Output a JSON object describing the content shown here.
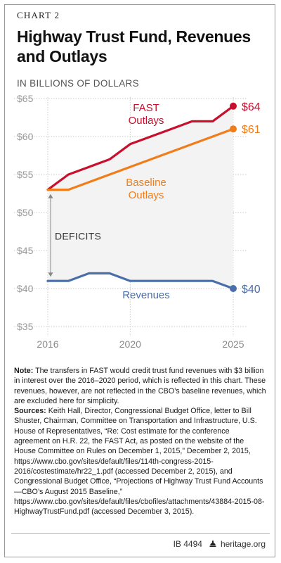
{
  "header": {
    "chart_label": "CHART 2",
    "title": "Highway Trust Fund, Revenues and Outlays",
    "units": "IN BILLIONS OF DOLLARS"
  },
  "chart_data": {
    "type": "line",
    "ylim": [
      35,
      65
    ],
    "xlim": [
      2016,
      2025
    ],
    "y_ticks": [
      "$65",
      "$60",
      "$55",
      "$50",
      "$45",
      "$40",
      "$35"
    ],
    "y_tick_values": [
      65,
      60,
      55,
      50,
      45,
      40,
      35
    ],
    "x_ticks": [
      "2016",
      "2020",
      "2025"
    ],
    "x_tick_values": [
      2016,
      2020,
      2025
    ],
    "grid": true,
    "series": [
      {
        "name": "FAST Outlays",
        "color": "#c8102e",
        "x": [
          2016,
          2017,
          2018,
          2019,
          2020,
          2021,
          2022,
          2023,
          2024,
          2025
        ],
        "values": [
          53,
          55,
          56,
          57,
          59,
          60,
          61,
          62,
          62,
          64
        ]
      },
      {
        "name": "Baseline Outlays",
        "color": "#f07d1a",
        "x": [
          2016,
          2017,
          2025
        ],
        "values": [
          53,
          53,
          61
        ]
      },
      {
        "name": "Revenues",
        "color": "#4a6ea9",
        "x": [
          2016,
          2017,
          2018,
          2019,
          2020,
          2021,
          2022,
          2023,
          2024,
          2025
        ],
        "values": [
          41,
          41,
          42,
          42,
          41,
          41,
          41,
          41,
          41,
          40
        ]
      }
    ],
    "end_labels": [
      "$64",
      "$61",
      "$40"
    ],
    "series_labels": {
      "fast": [
        "FAST",
        "Outlays"
      ],
      "baseline": [
        "Baseline",
        "Outlays"
      ],
      "revenues": "Revenues"
    },
    "annotation": "DEFICITS"
  },
  "notes": {
    "note_label": "Note:",
    "note_text": " The transfers in FAST would credit trust fund revenues with $3 billion in interest over the 2016–2020 period, which is reflected in this chart. These revenues, however, are not reflected in the CBO’s baseline revenues, which are excluded here for simplicity.",
    "sources_label": "Sources:",
    "sources_text": " Keith Hall, Director, Congressional Budget Office, letter to Bill Shuster, Chairman, Committee on Transportation and Infrastructure, U.S. House of Representatives, “Re: Cost estimate for the conference agreement on H.R. 22, the FAST Act, as posted on the website of the House Committee on Rules on December 1, 2015,” December 2, 2015, https://www.cbo.gov/sites/default/files/114th-congress-2015-2016/costestimate/hr22_1.pdf (accessed December 2, 2015), and Congressional Budget Office, “Projections of Highway Trust Fund Accounts—CBO’s August 2015 Baseline,” https://www.cbo.gov/sites/default/files/cbofiles/attachments/43884-2015-08-HighwayTrustFund.pdf (accessed December 3, 2015)."
  },
  "footer": {
    "id": "IB 4494",
    "site": "heritage.org"
  }
}
